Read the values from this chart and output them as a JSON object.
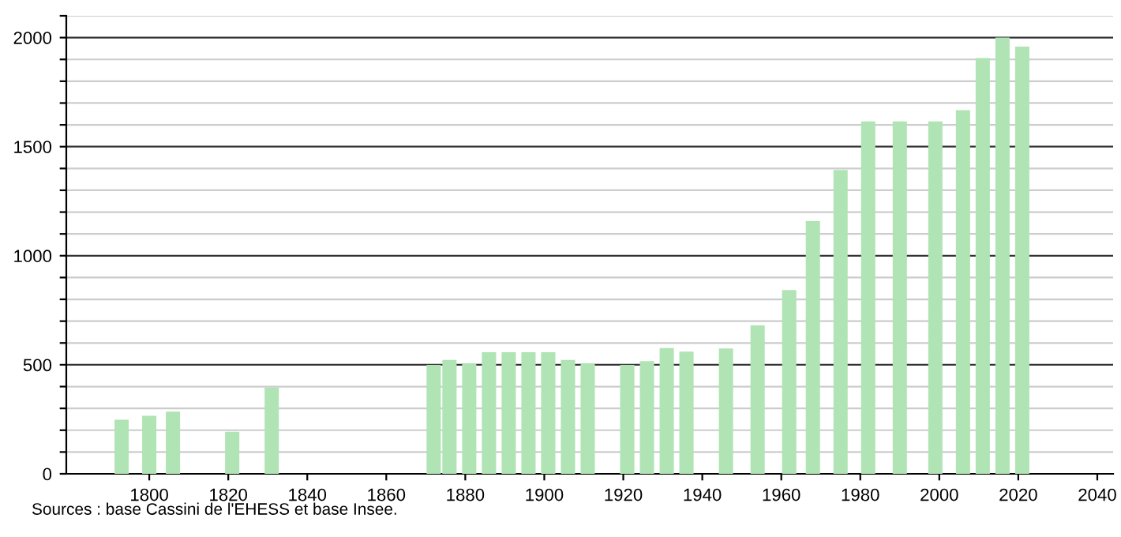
{
  "chart_data": {
    "type": "bar",
    "x": [
      1793,
      1800,
      1806,
      1821,
      1831,
      1872,
      1876,
      1881,
      1886,
      1891,
      1896,
      1901,
      1906,
      1911,
      1921,
      1926,
      1931,
      1936,
      1946,
      1954,
      1962,
      1968,
      1975,
      1982,
      1990,
      1999,
      2006,
      2011,
      2016,
      2021
    ],
    "values": [
      248,
      266,
      285,
      193,
      396,
      500,
      522,
      507,
      558,
      558,
      558,
      558,
      522,
      507,
      500,
      517,
      577,
      560,
      575,
      681,
      843,
      1159,
      1393,
      1616,
      1616,
      1616,
      1667,
      1906,
      2000,
      1959
    ],
    "color": "#b0e4b4",
    "xlim": [
      1779,
      2044
    ],
    "xticks": [
      1800,
      1820,
      1840,
      1860,
      1880,
      1900,
      1920,
      1940,
      1960,
      1980,
      2000,
      2020,
      2040
    ],
    "ylim": [
      0,
      2100
    ],
    "yticks": [
      0,
      {
        "value": 100,
        "label": null
      },
      {
        "value": 200,
        "label": null
      },
      {
        "value": 300,
        "label": null
      },
      {
        "value": 400,
        "label": null
      },
      500,
      {
        "value": 600,
        "label": null
      },
      {
        "value": 700,
        "label": null
      },
      {
        "value": 800,
        "label": null
      },
      {
        "value": 900,
        "label": null
      },
      1000,
      {
        "value": 1100,
        "label": null
      },
      {
        "value": 1200,
        "label": null
      },
      {
        "value": 1300,
        "label": null
      },
      {
        "value": 1400,
        "label": null
      },
      1500,
      {
        "value": 1600,
        "label": null
      },
      {
        "value": 1700,
        "label": null
      },
      {
        "value": 1800,
        "label": null
      },
      {
        "value": 1900,
        "label": null
      },
      2000,
      {
        "value": 2100,
        "label": null
      }
    ],
    "grid": "y",
    "annotations": [
      "Sources : base Cassini de l'EHESS et base Insee."
    ]
  }
}
